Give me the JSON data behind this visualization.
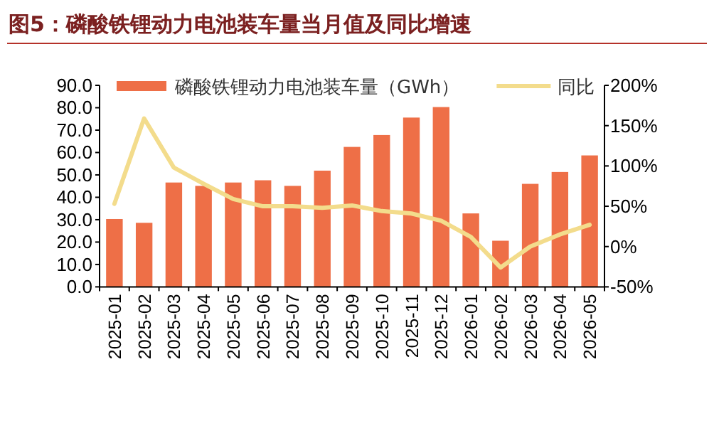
{
  "chart_data": {
    "type": "bar",
    "title": "图5：磷酸铁锂动力电池装车量当月值及同比增速",
    "categories": [
      "2025-01",
      "2025-02",
      "2025-03",
      "2025-04",
      "2025-05",
      "2025-06",
      "2025-07",
      "2025-08",
      "2025-09",
      "2025-10",
      "2025-11",
      "2025-12",
      "2026-01",
      "2026-02",
      "2026-03",
      "2026-04",
      "2026-05"
    ],
    "series": [
      {
        "name": "磷酸铁锂动力电池装车量（GWh）",
        "color": "#ee6f47",
        "values": [
          30.3,
          28.6,
          46.6,
          45.1,
          46.6,
          47.6,
          45.1,
          51.9,
          62.5,
          67.8,
          75.6,
          80.3,
          32.8,
          20.6,
          46.0,
          51.3,
          58.7
        ]
      },
      {
        "name": "同比",
        "type": "line",
        "axis": "y2",
        "color": "#f3dc8c",
        "values": [
          53,
          159,
          98,
          78,
          59,
          50,
          50,
          48,
          51,
          44,
          41,
          32,
          12,
          -26,
          0,
          15,
          27
        ]
      }
    ],
    "ylim": [
      0,
      90
    ],
    "yticks": [
      {
        "value": 0,
        "label": "0.0"
      },
      {
        "value": 10,
        "label": "10.0"
      },
      {
        "value": 20,
        "label": "20.0"
      },
      {
        "value": 30,
        "label": "30.0"
      },
      {
        "value": 40,
        "label": "40.0"
      },
      {
        "value": 50,
        "label": "50.0"
      },
      {
        "value": 60,
        "label": "60.0"
      },
      {
        "value": 70,
        "label": "70.0"
      },
      {
        "value": 80,
        "label": "80.0"
      },
      {
        "value": 90,
        "label": "90.0"
      }
    ],
    "y2lim": [
      -50,
      200
    ],
    "y2ticks": [
      {
        "value": -50,
        "label": "-50%"
      },
      {
        "value": 0,
        "label": "0%"
      },
      {
        "value": 50,
        "label": "50%"
      },
      {
        "value": 100,
        "label": "100%"
      },
      {
        "value": 150,
        "label": "150%"
      },
      {
        "value": 200,
        "label": "200%"
      }
    ],
    "legend": "top",
    "grid": false
  }
}
